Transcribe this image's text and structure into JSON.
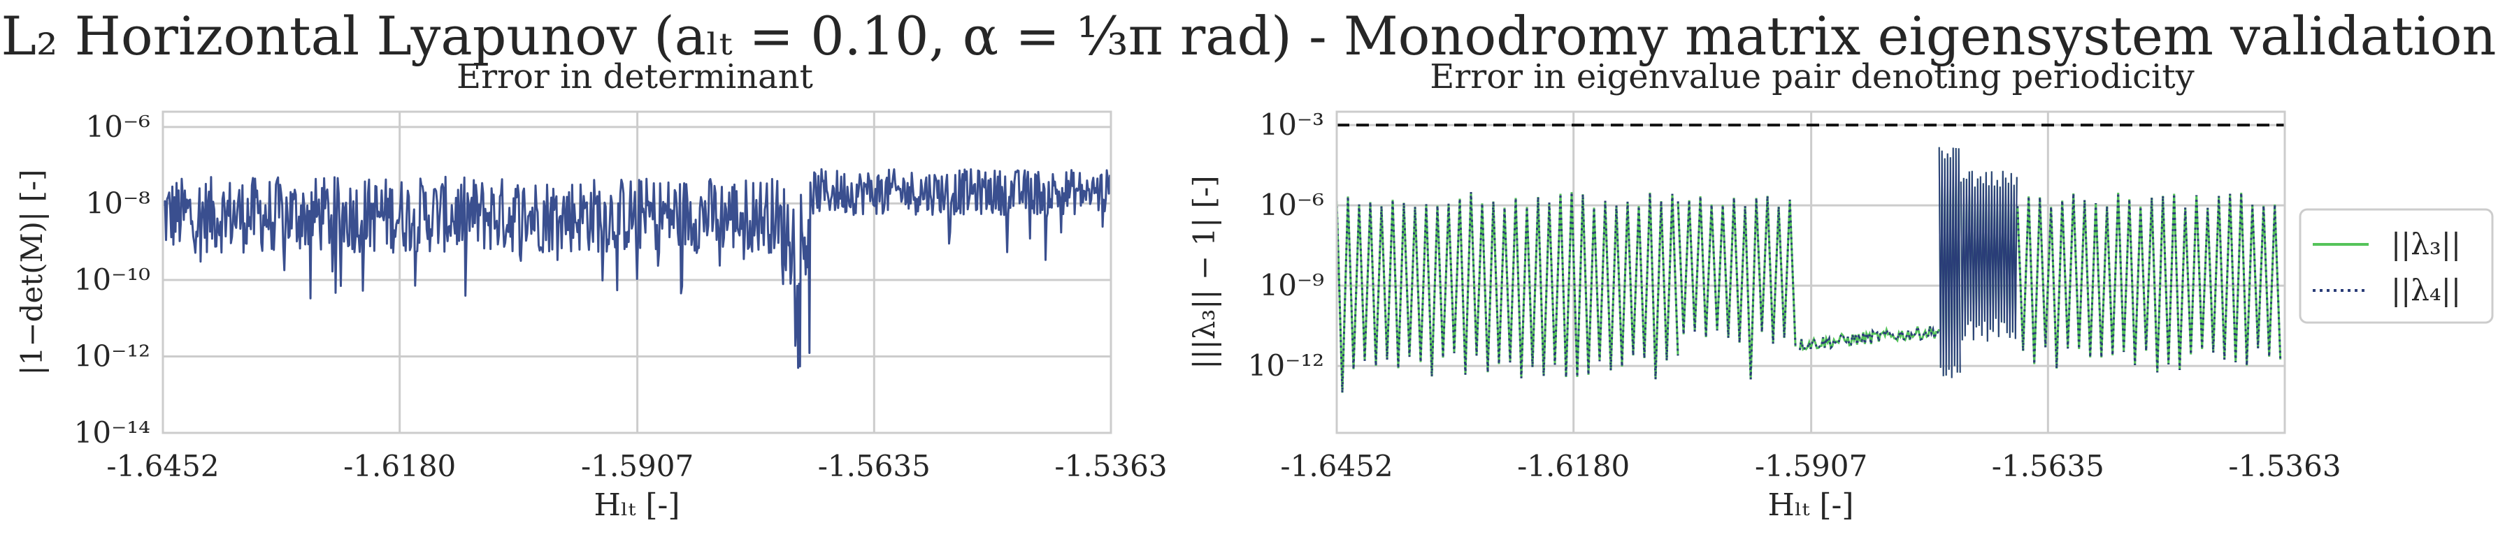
{
  "figure": {
    "title": "L₂ Horizontal Lyapunov (aₗₜ = 0.10, α = ⅓π rad) - Monodromy matrix eigensystem validation"
  },
  "chart_data": [
    {
      "id": "left",
      "type": "line",
      "title": "Error in determinant",
      "xlabel": "Hₗₜ [-]",
      "ylabel": "|1−det(M)| [-]",
      "xlim": [
        -1.6452,
        -1.5363
      ],
      "yscale": "log",
      "ylim_log10": [
        -14,
        -5.6
      ],
      "grid": true,
      "x_ticks": [
        -1.6452,
        -1.618,
        -1.5907,
        -1.5635,
        -1.5363
      ],
      "x_tick_labels": [
        "-1.6452",
        "-1.6180",
        "-1.5907",
        "-1.5635",
        "-1.5363"
      ],
      "y_ticks_log10": [
        -6,
        -8,
        -10,
        -12,
        -14
      ],
      "y_tick_labels": [
        "10⁻⁶",
        "10⁻⁸",
        "10⁻¹⁰",
        "10⁻¹²",
        "10⁻¹⁴"
      ],
      "series": [
        {
          "color": "#3a4f8f",
          "style": "solid",
          "segments": [
            {
              "x": [
                -1.6452,
                -1.5745
              ],
              "log10_center": -8.3,
              "log10_spread": 1.0,
              "log10_dips_to": -10.5
            },
            {
              "x": [
                -1.5745,
                -1.5705
              ],
              "log10_center": -8.8,
              "log10_spread": 1.4,
              "log10_dips_to": -12.5
            },
            {
              "x": [
                -1.5705,
                -1.5363
              ],
              "log10_center": -7.7,
              "log10_spread": 0.6,
              "log10_dips_to": -9.5
            }
          ]
        }
      ]
    },
    {
      "id": "right",
      "type": "line",
      "title": "Error in eigenvalue pair denoting periodicity",
      "xlabel": "Hₗₜ [-]",
      "ylabel": "|||λ₃|| − 1| [-]",
      "xlim": [
        -1.6452,
        -1.5363
      ],
      "yscale": "log",
      "ylim_log10": [
        -14.5,
        -2.5
      ],
      "grid": true,
      "threshold_log10": -3,
      "x_ticks": [
        -1.6452,
        -1.618,
        -1.5907,
        -1.5635,
        -1.5363
      ],
      "x_tick_labels": [
        "-1.6452",
        "-1.6180",
        "-1.5907",
        "-1.5635",
        "-1.5363"
      ],
      "y_ticks_log10": [
        -3,
        -6,
        -9,
        -12
      ],
      "y_tick_labels": [
        "10⁻³",
        "10⁻⁶",
        "10⁻⁹",
        "10⁻¹²"
      ],
      "legend": {
        "placement": "right-outside",
        "entries": [
          {
            "label": "||λ₃||",
            "color": "#55c35a",
            "style": "solid"
          },
          {
            "label": "||λ₄||",
            "color": "#2a3d78",
            "style": "dotted"
          }
        ]
      },
      "bands": [
        {
          "x": [
            -1.6452,
            -1.606
          ],
          "high_log10": -5.8,
          "low_log10": -12.0,
          "dips_to": -13.0
        },
        {
          "x": [
            -1.606,
            -1.592
          ],
          "high_log10": -5.8,
          "low_log10": -11.0,
          "dips_to": -12.5
        },
        {
          "x": [
            -1.592,
            -1.576
          ],
          "base_log10": -11.2,
          "rise_to": -10.7
        },
        {
          "x": [
            -1.576,
            -1.5735
          ],
          "high_log10": -4.0,
          "low_log10": -12.5
        },
        {
          "x": [
            -1.5735,
            -1.567
          ],
          "high_log10": -5.0,
          "low_log10": -10.6,
          "spikes_to": -3.4
        },
        {
          "x": [
            -1.567,
            -1.5363
          ],
          "high_log10": -5.8,
          "low_log10": -11.8
        }
      ]
    }
  ]
}
